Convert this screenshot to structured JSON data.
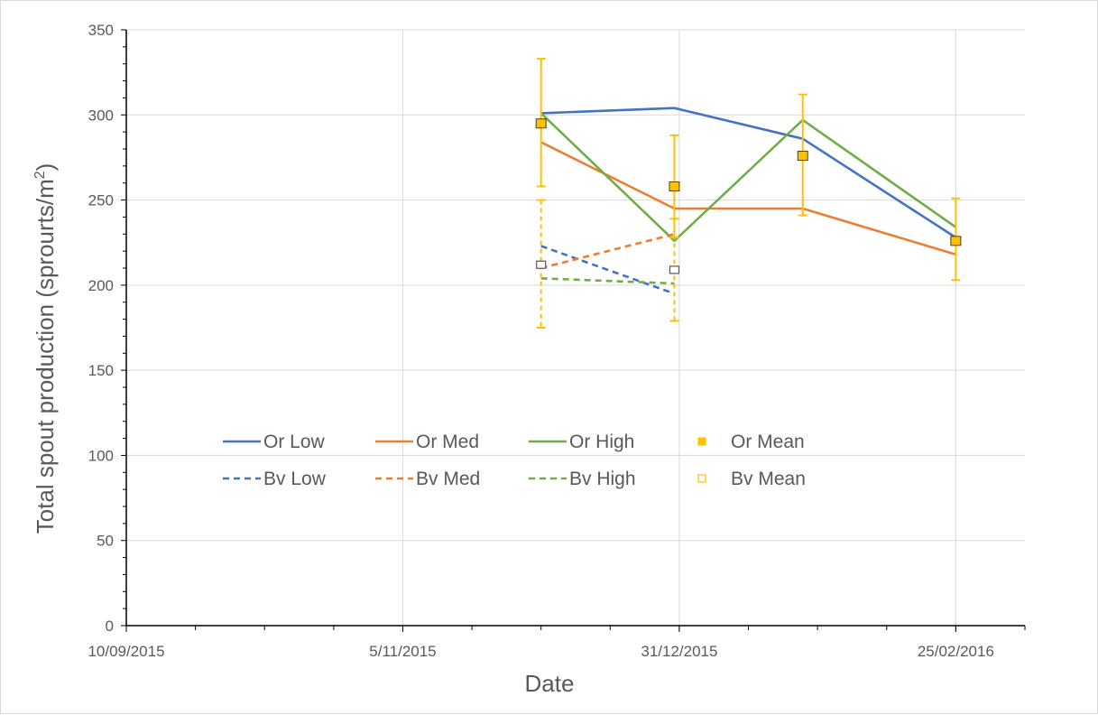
{
  "chart_data": {
    "type": "line",
    "xlabel": "Date",
    "ylabel_main": "Total spout production (sprourts/m",
    "ylabel_sup": "2",
    "ylabel_end": ")",
    "ylim": [
      0,
      350
    ],
    "y_ticks": [
      0,
      50,
      100,
      150,
      200,
      250,
      300,
      350
    ],
    "xlim": [
      "2015-09-10",
      "2016-03-10"
    ],
    "x_tick_labels": [
      "10/09/2015",
      "5/11/2015",
      "31/12/2015",
      "25/02/2016"
    ],
    "x_tick_dates": [
      "2015-09-10",
      "2015-11-05",
      "2015-12-31",
      "2016-02-25"
    ],
    "x_minor_days": 14,
    "grid": true,
    "legend_position": "inside-lower-left",
    "series": [
      {
        "name": "Or Low",
        "style": "solid",
        "color": "#4472C4",
        "x": [
          "2015-12-03",
          "2015-12-30",
          "2016-01-25",
          "2016-02-25"
        ],
        "y": [
          301,
          304,
          286,
          228
        ]
      },
      {
        "name": "Or Med",
        "style": "solid",
        "color": "#ED7D31",
        "x": [
          "2015-12-03",
          "2015-12-30",
          "2016-01-25",
          "2016-02-25"
        ],
        "y": [
          284,
          245,
          245,
          218
        ]
      },
      {
        "name": "Or High",
        "style": "solid",
        "color": "#70AD47",
        "x": [
          "2015-12-03",
          "2015-12-30",
          "2016-01-25",
          "2016-02-25"
        ],
        "y": [
          301,
          226,
          297,
          234
        ]
      },
      {
        "name": "Bv Low",
        "style": "dashed",
        "color": "#4472C4",
        "x": [
          "2015-12-03",
          "2015-12-30"
        ],
        "y": [
          223,
          195
        ]
      },
      {
        "name": "Bv Med",
        "style": "dashed",
        "color": "#ED7D31",
        "x": [
          "2015-12-03",
          "2015-12-30"
        ],
        "y": [
          210,
          230
        ]
      },
      {
        "name": "Bv High",
        "style": "dashed",
        "color": "#70AD47",
        "x": [
          "2015-12-03",
          "2015-12-30"
        ],
        "y": [
          204,
          201
        ]
      }
    ],
    "means": [
      {
        "name": "Or Mean",
        "marker": "filled-square",
        "color": "#FFC000",
        "x": [
          "2015-12-03",
          "2015-12-30",
          "2016-01-25",
          "2016-02-25"
        ],
        "y": [
          295,
          258,
          276,
          226
        ],
        "err_low": [
          258,
          228,
          241,
          203
        ],
        "err_high": [
          333,
          288,
          312,
          251
        ]
      },
      {
        "name": "Bv Mean",
        "marker": "open-square",
        "color": "#FFC000",
        "x": [
          "2015-12-03",
          "2015-12-30"
        ],
        "y": [
          212,
          209
        ],
        "err_low": [
          175,
          179
        ],
        "err_high": [
          250,
          239
        ]
      }
    ]
  }
}
